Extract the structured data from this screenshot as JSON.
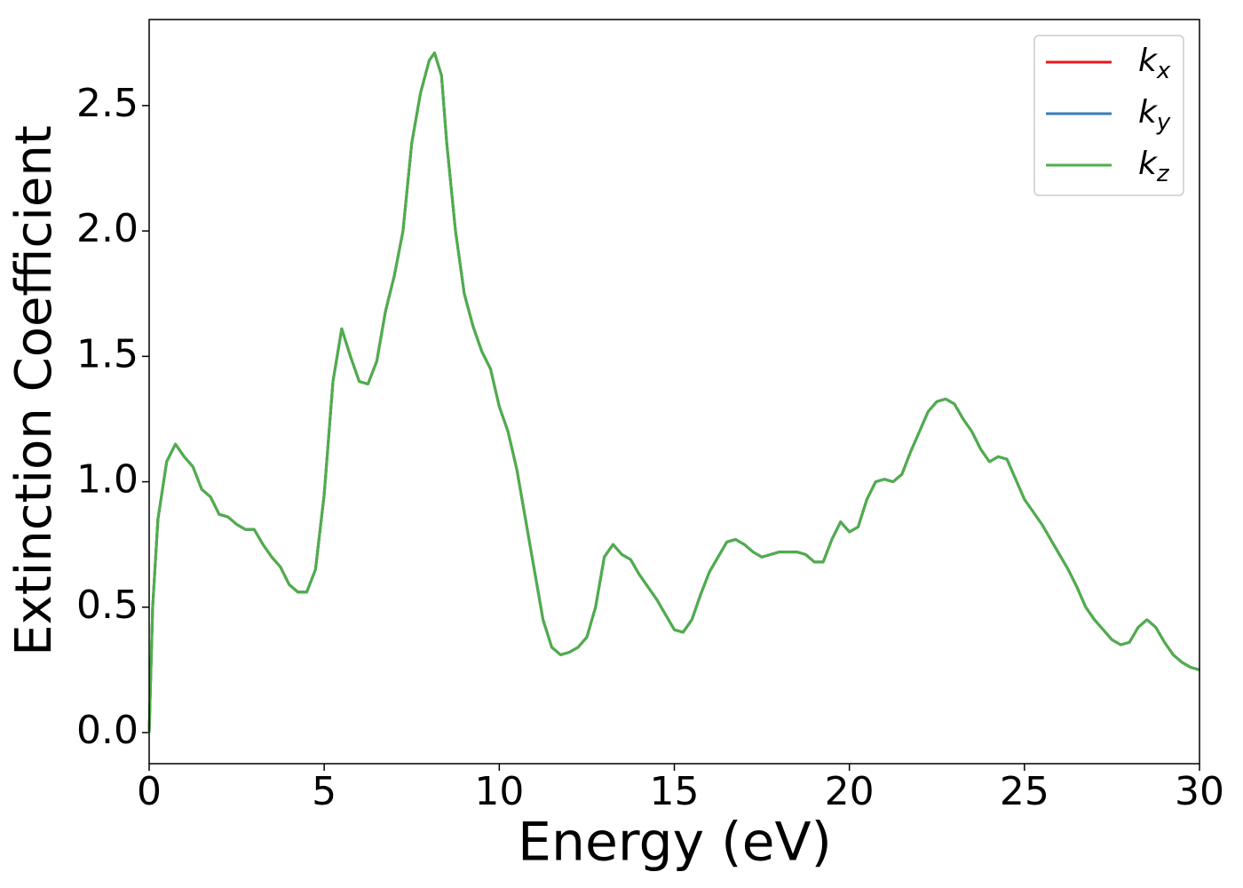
{
  "chart_data": {
    "type": "line",
    "xlabel": "Energy (eV)",
    "ylabel": "Extinction Coefficient",
    "x": [
      0,
      0.1,
      0.25,
      0.5,
      0.75,
      1.0,
      1.25,
      1.5,
      1.75,
      2.0,
      2.25,
      2.5,
      2.75,
      3.0,
      3.25,
      3.5,
      3.75,
      4.0,
      4.25,
      4.5,
      4.75,
      5.0,
      5.25,
      5.5,
      5.75,
      6.0,
      6.25,
      6.5,
      6.75,
      7.0,
      7.25,
      7.5,
      7.75,
      8.0,
      8.15,
      8.35,
      8.5,
      8.75,
      9.0,
      9.25,
      9.5,
      9.75,
      10.0,
      10.25,
      10.5,
      10.75,
      11.0,
      11.25,
      11.5,
      11.75,
      12.0,
      12.25,
      12.5,
      12.75,
      13.0,
      13.25,
      13.5,
      13.75,
      14.0,
      14.25,
      14.5,
      14.75,
      15.0,
      15.25,
      15.5,
      15.75,
      16.0,
      16.25,
      16.5,
      16.75,
      17.0,
      17.25,
      17.5,
      17.75,
      18.0,
      18.5,
      18.75,
      19.0,
      19.25,
      19.5,
      19.75,
      20.0,
      20.25,
      20.5,
      20.75,
      21.0,
      21.25,
      21.5,
      21.75,
      22.0,
      22.25,
      22.5,
      22.75,
      23.0,
      23.25,
      23.5,
      23.75,
      24.0,
      24.25,
      24.5,
      24.75,
      25.0,
      25.25,
      25.5,
      25.75,
      26.0,
      26.25,
      26.5,
      26.75,
      27.0,
      27.25,
      27.5,
      27.75,
      28.0,
      28.25,
      28.5,
      28.75,
      29.0,
      29.25,
      29.5,
      29.75,
      30.0
    ],
    "series": [
      {
        "name": "kx",
        "color": "#e41a1c",
        "values": [
          0.0,
          0.5,
          0.85,
          1.08,
          1.15,
          1.1,
          1.06,
          0.97,
          0.94,
          0.87,
          0.86,
          0.83,
          0.81,
          0.81,
          0.75,
          0.7,
          0.66,
          0.59,
          0.56,
          0.56,
          0.65,
          0.95,
          1.4,
          1.61,
          1.5,
          1.4,
          1.39,
          1.48,
          1.68,
          1.82,
          2.0,
          2.35,
          2.55,
          2.68,
          2.71,
          2.62,
          2.35,
          2.0,
          1.75,
          1.62,
          1.52,
          1.45,
          1.3,
          1.2,
          1.05,
          0.85,
          0.65,
          0.45,
          0.34,
          0.31,
          0.32,
          0.34,
          0.38,
          0.5,
          0.7,
          0.75,
          0.71,
          0.69,
          0.63,
          0.58,
          0.53,
          0.47,
          0.41,
          0.4,
          0.45,
          0.55,
          0.64,
          0.7,
          0.76,
          0.77,
          0.75,
          0.72,
          0.7,
          0.71,
          0.72,
          0.72,
          0.71,
          0.68,
          0.68,
          0.77,
          0.84,
          0.8,
          0.82,
          0.93,
          1.0,
          1.01,
          1.0,
          1.03,
          1.12,
          1.2,
          1.28,
          1.32,
          1.33,
          1.31,
          1.25,
          1.2,
          1.13,
          1.08,
          1.1,
          1.09,
          1.01,
          0.93,
          0.88,
          0.83,
          0.77,
          0.71,
          0.65,
          0.58,
          0.5,
          0.45,
          0.41,
          0.37,
          0.35,
          0.36,
          0.42,
          0.45,
          0.42,
          0.36,
          0.31,
          0.28,
          0.26,
          0.25
        ]
      },
      {
        "name": "ky",
        "color": "#377eb8",
        "values": [
          0.0,
          0.5,
          0.85,
          1.08,
          1.15,
          1.1,
          1.06,
          0.97,
          0.94,
          0.87,
          0.86,
          0.83,
          0.81,
          0.81,
          0.75,
          0.7,
          0.66,
          0.59,
          0.56,
          0.56,
          0.65,
          0.95,
          1.4,
          1.61,
          1.5,
          1.4,
          1.39,
          1.48,
          1.68,
          1.82,
          2.0,
          2.35,
          2.55,
          2.68,
          2.71,
          2.62,
          2.35,
          2.0,
          1.75,
          1.62,
          1.52,
          1.45,
          1.3,
          1.2,
          1.05,
          0.85,
          0.65,
          0.45,
          0.34,
          0.31,
          0.32,
          0.34,
          0.38,
          0.5,
          0.7,
          0.75,
          0.71,
          0.69,
          0.63,
          0.58,
          0.53,
          0.47,
          0.41,
          0.4,
          0.45,
          0.55,
          0.64,
          0.7,
          0.76,
          0.77,
          0.75,
          0.72,
          0.7,
          0.71,
          0.72,
          0.72,
          0.71,
          0.68,
          0.68,
          0.77,
          0.84,
          0.8,
          0.82,
          0.93,
          1.0,
          1.01,
          1.0,
          1.03,
          1.12,
          1.2,
          1.28,
          1.32,
          1.33,
          1.31,
          1.25,
          1.2,
          1.13,
          1.08,
          1.1,
          1.09,
          1.01,
          0.93,
          0.88,
          0.83,
          0.77,
          0.71,
          0.65,
          0.58,
          0.5,
          0.45,
          0.41,
          0.37,
          0.35,
          0.36,
          0.42,
          0.45,
          0.42,
          0.36,
          0.31,
          0.28,
          0.26,
          0.25
        ]
      },
      {
        "name": "kz",
        "color": "#4daf4a",
        "values": [
          0.0,
          0.5,
          0.85,
          1.08,
          1.15,
          1.1,
          1.06,
          0.97,
          0.94,
          0.87,
          0.86,
          0.83,
          0.81,
          0.81,
          0.75,
          0.7,
          0.66,
          0.59,
          0.56,
          0.56,
          0.65,
          0.95,
          1.4,
          1.61,
          1.5,
          1.4,
          1.39,
          1.48,
          1.68,
          1.82,
          2.0,
          2.35,
          2.55,
          2.68,
          2.71,
          2.62,
          2.35,
          2.0,
          1.75,
          1.62,
          1.52,
          1.45,
          1.3,
          1.2,
          1.05,
          0.85,
          0.65,
          0.45,
          0.34,
          0.31,
          0.32,
          0.34,
          0.38,
          0.5,
          0.7,
          0.75,
          0.71,
          0.69,
          0.63,
          0.58,
          0.53,
          0.47,
          0.41,
          0.4,
          0.45,
          0.55,
          0.64,
          0.7,
          0.76,
          0.77,
          0.75,
          0.72,
          0.7,
          0.71,
          0.72,
          0.72,
          0.71,
          0.68,
          0.68,
          0.77,
          0.84,
          0.8,
          0.82,
          0.93,
          1.0,
          1.01,
          1.0,
          1.03,
          1.12,
          1.2,
          1.28,
          1.32,
          1.33,
          1.31,
          1.25,
          1.2,
          1.13,
          1.08,
          1.1,
          1.09,
          1.01,
          0.93,
          0.88,
          0.83,
          0.77,
          0.71,
          0.65,
          0.58,
          0.5,
          0.45,
          0.41,
          0.37,
          0.35,
          0.36,
          0.42,
          0.45,
          0.42,
          0.36,
          0.31,
          0.28,
          0.26,
          0.25
        ]
      }
    ],
    "xlim": [
      0,
      30
    ],
    "xticks": [
      0,
      5,
      10,
      15,
      20,
      25,
      30
    ],
    "ylim": [
      -0.124,
      2.843
    ],
    "yticks": [
      {
        "value": 0,
        "label": "0.0"
      },
      0.5,
      {
        "value": 1,
        "label": "1.0"
      },
      1.5,
      {
        "value": 2,
        "label": "2.0"
      },
      2.5
    ],
    "grid": false,
    "legend": "upper right"
  }
}
